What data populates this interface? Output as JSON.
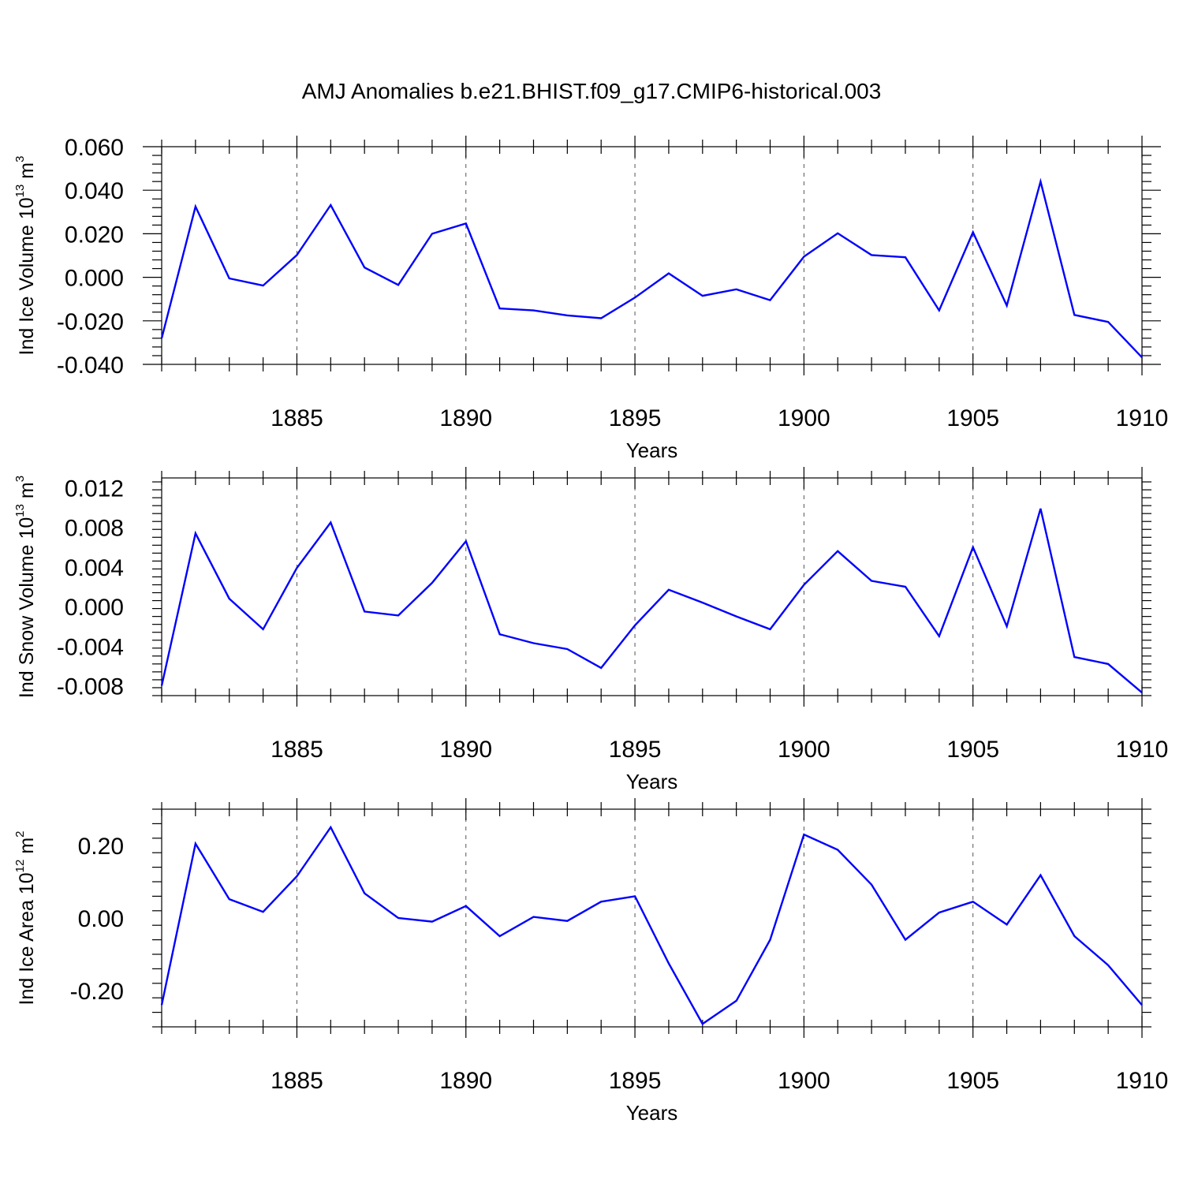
{
  "title": "AMJ Anomalies b.e21.BHIST.f09_g17.CMIP6-historical.003",
  "colors": {
    "line": "#0000ff",
    "axis": "#000000",
    "grid": "#555555"
  },
  "chart_data": [
    {
      "type": "line",
      "xlabel": "Years",
      "ylabel_main": "Ind Ice Volume 10",
      "ylabel_exp": "13",
      "ylabel_unit": " m",
      "ylabel_unit_exp": "3",
      "xlim": [
        1881,
        1910
      ],
      "ylim": [
        -0.04,
        0.06
      ],
      "yticks": [
        -0.04,
        -0.02,
        0.0,
        0.02,
        0.04,
        0.06
      ],
      "ytick_labels": [
        "-0.040",
        "-0.020",
        "0.000",
        "0.020",
        "0.040",
        "0.060"
      ],
      "xticks": [
        1885,
        1890,
        1895,
        1900,
        1905,
        1910
      ],
      "xtick_labels": [
        "1885",
        "1890",
        "1895",
        "1900",
        "1905",
        "1910"
      ],
      "grid": "vertical dashed at major x ticks",
      "series": [
        {
          "name": "Ind Ice Volume",
          "x": [
            1881,
            1882,
            1883,
            1884,
            1885,
            1886,
            1887,
            1888,
            1889,
            1890,
            1891,
            1892,
            1893,
            1894,
            1895,
            1896,
            1897,
            1898,
            1899,
            1900,
            1901,
            1902,
            1903,
            1904,
            1905,
            1906,
            1907,
            1908,
            1909,
            1910
          ],
          "values": [
            -0.028,
            0.0325,
            -0.0005,
            -0.0038,
            0.0102,
            0.0332,
            0.0045,
            -0.0035,
            0.02,
            0.0247,
            -0.0143,
            -0.0152,
            -0.0175,
            -0.0188,
            -0.0093,
            0.0018,
            -0.0085,
            -0.0055,
            -0.0105,
            0.0095,
            0.0202,
            0.0102,
            0.0092,
            -0.0152,
            0.0207,
            -0.013,
            0.044,
            -0.0173,
            -0.0205,
            -0.0368
          ]
        }
      ]
    },
    {
      "type": "line",
      "xlabel": "Years",
      "ylabel_main": "Ind Snow Volume 10",
      "ylabel_exp": "13",
      "ylabel_unit": " m",
      "ylabel_unit_exp": "3",
      "xlim": [
        1881,
        1910
      ],
      "ylim": [
        -0.009,
        0.013
      ],
      "yticks": [
        -0.008,
        -0.004,
        0.0,
        0.004,
        0.008,
        0.012
      ],
      "ytick_labels": [
        "-0.008",
        "-0.004",
        "0.000",
        "0.004",
        "0.008",
        "0.012"
      ],
      "xticks": [
        1885,
        1890,
        1895,
        1900,
        1905,
        1910
      ],
      "xtick_labels": [
        "1885",
        "1890",
        "1895",
        "1900",
        "1905",
        "1910"
      ],
      "grid": "vertical dashed at major x ticks",
      "series": [
        {
          "name": "Ind Snow Volume",
          "x": [
            1881,
            1882,
            1883,
            1884,
            1885,
            1886,
            1887,
            1888,
            1889,
            1890,
            1891,
            1892,
            1893,
            1894,
            1895,
            1896,
            1897,
            1898,
            1899,
            1900,
            1901,
            1902,
            1903,
            1904,
            1905,
            1906,
            1907,
            1908,
            1909,
            1910
          ],
          "values": [
            -0.008,
            0.0074,
            0.0008,
            -0.0023,
            0.0039,
            0.0085,
            -0.0005,
            -0.0009,
            0.0024,
            0.0066,
            -0.0028,
            -0.0037,
            -0.0043,
            -0.0062,
            -0.0019,
            0.0017,
            0.0004,
            -0.001,
            -0.0023,
            0.0022,
            0.0056,
            0.0026,
            0.002,
            -0.003,
            0.006,
            -0.002,
            0.0099,
            -0.0051,
            -0.0058,
            -0.0087
          ]
        }
      ]
    },
    {
      "type": "line",
      "xlabel": "Years",
      "ylabel_main": "Ind Ice Area 10",
      "ylabel_exp": "12",
      "ylabel_unit": " m",
      "ylabel_unit_exp": "2",
      "xlim": [
        1881,
        1910
      ],
      "ylim": [
        -0.3,
        0.3
      ],
      "yticks": [
        -0.2,
        0.0,
        0.2
      ],
      "ytick_labels": [
        "-0.20",
        "0.00",
        "0.20"
      ],
      "xticks": [
        1885,
        1890,
        1895,
        1900,
        1905,
        1910
      ],
      "xtick_labels": [
        "1885",
        "1890",
        "1895",
        "1900",
        "1905",
        "1910"
      ],
      "grid": "vertical dashed at major x ticks",
      "series": [
        {
          "name": "Ind Ice Area",
          "x": [
            1881,
            1882,
            1883,
            1884,
            1885,
            1886,
            1887,
            1888,
            1889,
            1890,
            1891,
            1892,
            1893,
            1894,
            1895,
            1896,
            1897,
            1898,
            1899,
            1900,
            1901,
            1902,
            1903,
            1904,
            1905,
            1906,
            1907,
            1908,
            1909,
            1910
          ],
          "values": [
            -0.24,
            0.205,
            0.052,
            0.017,
            0.115,
            0.25,
            0.068,
            0.0,
            -0.01,
            0.033,
            -0.05,
            0.003,
            -0.008,
            0.045,
            0.06,
            -0.125,
            -0.292,
            -0.228,
            -0.06,
            0.23,
            0.188,
            0.092,
            -0.06,
            0.015,
            0.045,
            -0.018,
            0.118,
            -0.05,
            -0.13,
            -0.24
          ]
        }
      ]
    }
  ]
}
